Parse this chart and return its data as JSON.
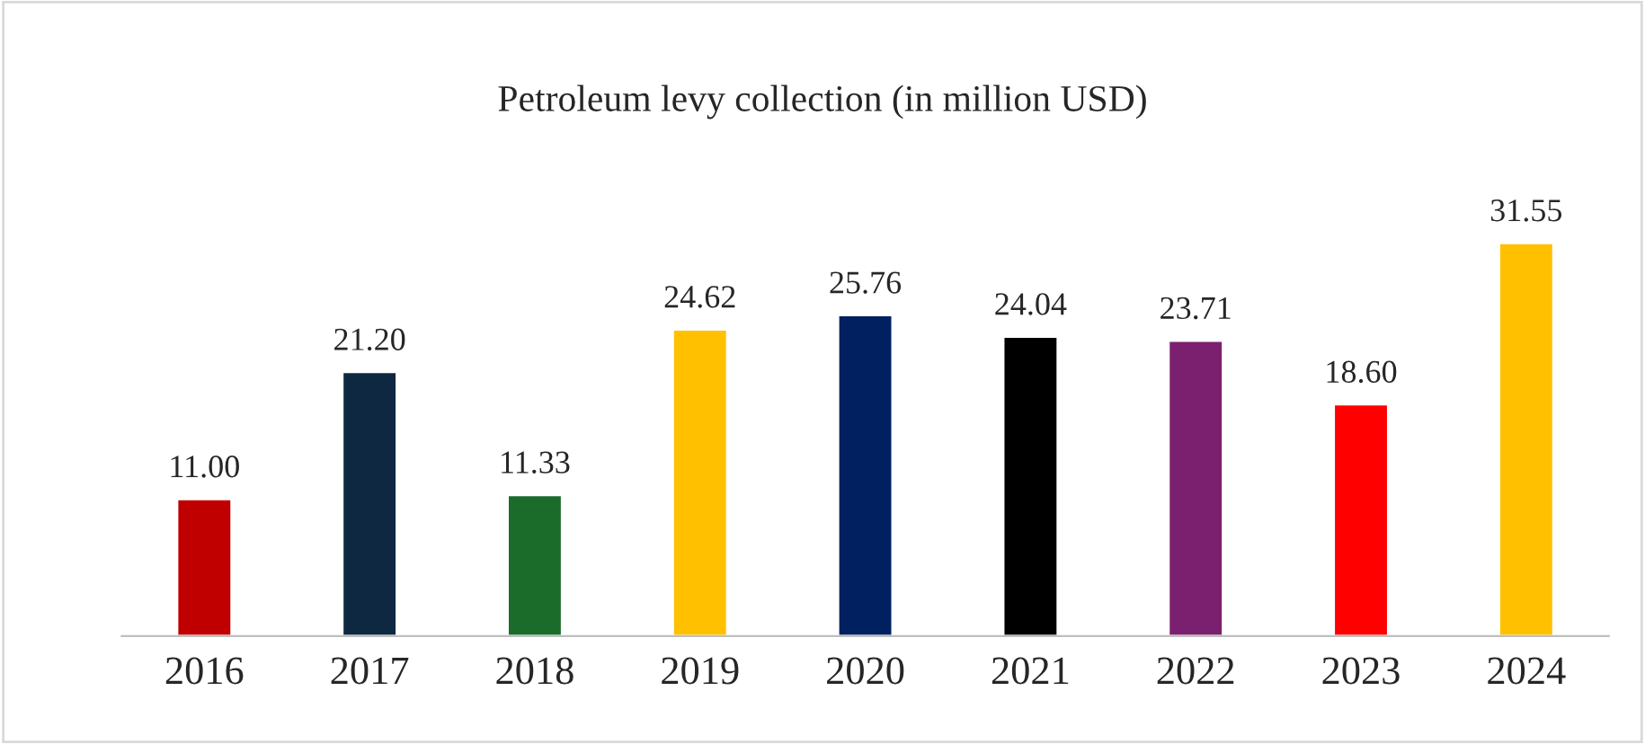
{
  "chart_data": {
    "type": "bar",
    "title": "Petroleum levy collection (in million USD)",
    "categories": [
      "2016",
      "2017",
      "2018",
      "2019",
      "2020",
      "2021",
      "2022",
      "2023",
      "2024"
    ],
    "values": [
      11.0,
      21.2,
      11.33,
      24.62,
      25.76,
      24.04,
      23.71,
      18.6,
      31.55
    ],
    "colors": [
      "#c00000",
      "#0e2841",
      "#1b6b2a",
      "#ffc000",
      "#002060",
      "#000000",
      "#7a206f",
      "#ff0000",
      "#ffc000"
    ],
    "value_labels": [
      "11.00",
      "21.20",
      "11.33",
      "24.62",
      "25.76",
      "24.04",
      "23.71",
      "18.60",
      "31.55"
    ],
    "grid": false,
    "legend": false
  }
}
